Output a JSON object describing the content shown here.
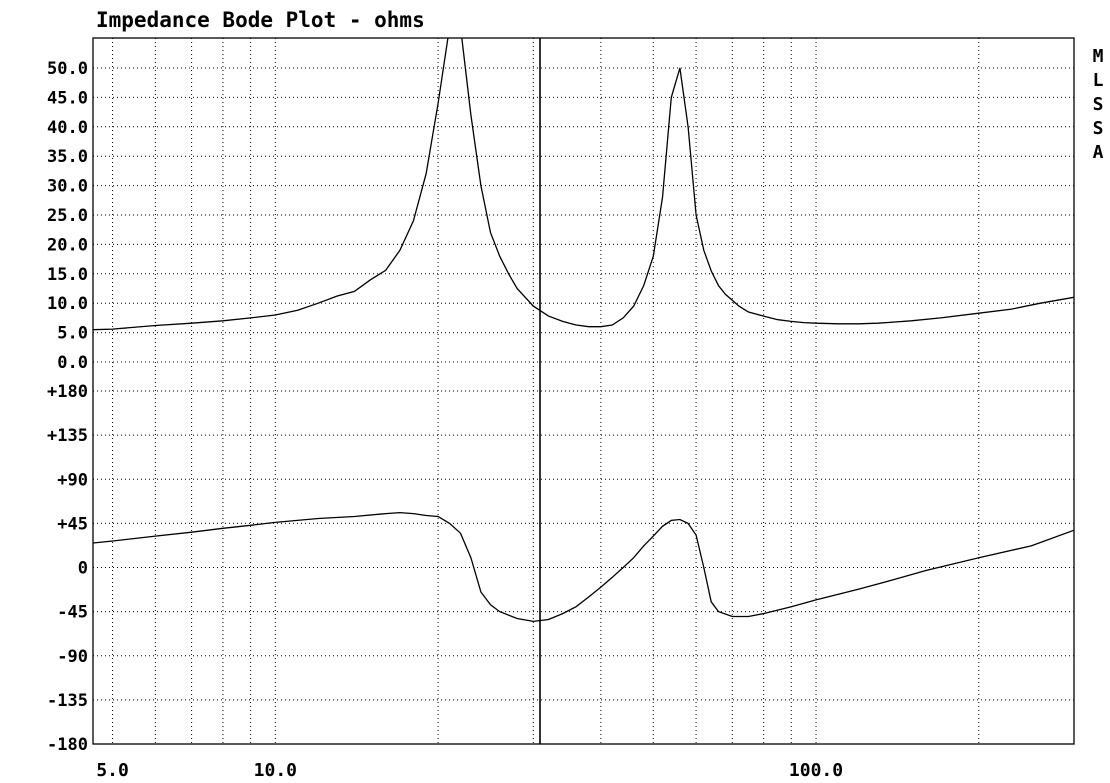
{
  "chart_data": {
    "type": "line",
    "title": "Impedance Bode Plot - ohms",
    "side_label": "MLSSA",
    "x_scale": "log",
    "xlim": [
      4.6,
      300
    ],
    "x_ticklabels": [
      "5.0",
      "10.0",
      "100.0"
    ],
    "x_grid": [
      5,
      6,
      7,
      8,
      9,
      10,
      20,
      30,
      40,
      50,
      60,
      70,
      80,
      90,
      100,
      200,
      300
    ],
    "magnitude": {
      "ylim": [
        0,
        50
      ],
      "y_ticklabels": [
        "50.0",
        "45.0",
        "40.0",
        "35.0",
        "30.0",
        "25.0",
        "20.0",
        "15.0",
        "10.0",
        "5.0",
        "0.0"
      ],
      "series": [
        {
          "x": [
            4.6,
            5,
            6,
            7,
            8,
            9,
            10,
            11,
            12,
            13,
            14,
            15,
            16,
            17,
            18,
            19,
            20,
            21,
            22,
            23,
            24,
            25,
            26,
            27,
            28,
            30,
            32,
            34,
            36,
            38,
            40,
            42,
            44,
            46,
            48,
            50,
            52,
            54,
            56,
            58,
            60,
            62,
            64,
            66,
            68,
            70,
            72,
            75,
            80,
            85,
            90,
            95,
            100,
            110,
            120,
            130,
            140,
            150,
            170,
            200,
            230,
            260,
            300
          ],
          "values": [
            5.5,
            5.6,
            6.2,
            6.6,
            7.0,
            7.5,
            8.0,
            8.8,
            10.0,
            11.2,
            12.0,
            14.0,
            15.6,
            19.0,
            24.0,
            32.0,
            44.0,
            57.0,
            57.0,
            42.0,
            30.0,
            22.0,
            18.0,
            15.0,
            12.5,
            9.5,
            7.8,
            6.9,
            6.3,
            6.0,
            6.0,
            6.3,
            7.5,
            9.5,
            13.0,
            18.0,
            28.0,
            45.0,
            50.0,
            40.0,
            25.0,
            19.0,
            15.5,
            13.0,
            11.5,
            10.5,
            9.5,
            8.5,
            7.8,
            7.2,
            6.9,
            6.7,
            6.6,
            6.5,
            6.5,
            6.6,
            6.8,
            7.0,
            7.5,
            8.3,
            9.0,
            10.0,
            11.0
          ]
        }
      ]
    },
    "phase": {
      "ylim": [
        -180,
        180
      ],
      "y_ticklabels": [
        "+180",
        "+135",
        "+90",
        "+45",
        "0",
        "-45",
        "-90",
        "-135",
        "-180"
      ],
      "series": [
        {
          "x": [
            4.6,
            5,
            6,
            7,
            8,
            9,
            10,
            12,
            14,
            16,
            17,
            18,
            19,
            20,
            21,
            22,
            23,
            24,
            25,
            26,
            28,
            30,
            32,
            34,
            36,
            38,
            40,
            42,
            44,
            46,
            48,
            50,
            52,
            54,
            56,
            58,
            60,
            62,
            64,
            66,
            70,
            75,
            80,
            90,
            100,
            120,
            140,
            160,
            200,
            250,
            300
          ],
          "values": [
            25,
            27,
            32,
            36,
            40,
            43,
            46,
            50,
            52,
            55,
            56,
            55,
            53,
            52,
            45,
            35,
            10,
            -25,
            -38,
            -45,
            -52,
            -55,
            -53,
            -47,
            -40,
            -30,
            -20,
            -10,
            0,
            10,
            22,
            32,
            42,
            48,
            49,
            45,
            33,
            0,
            -35,
            -45,
            -50,
            -50,
            -47,
            -40,
            -33,
            -22,
            -12,
            -3,
            10,
            22,
            38
          ]
        }
      ]
    }
  }
}
